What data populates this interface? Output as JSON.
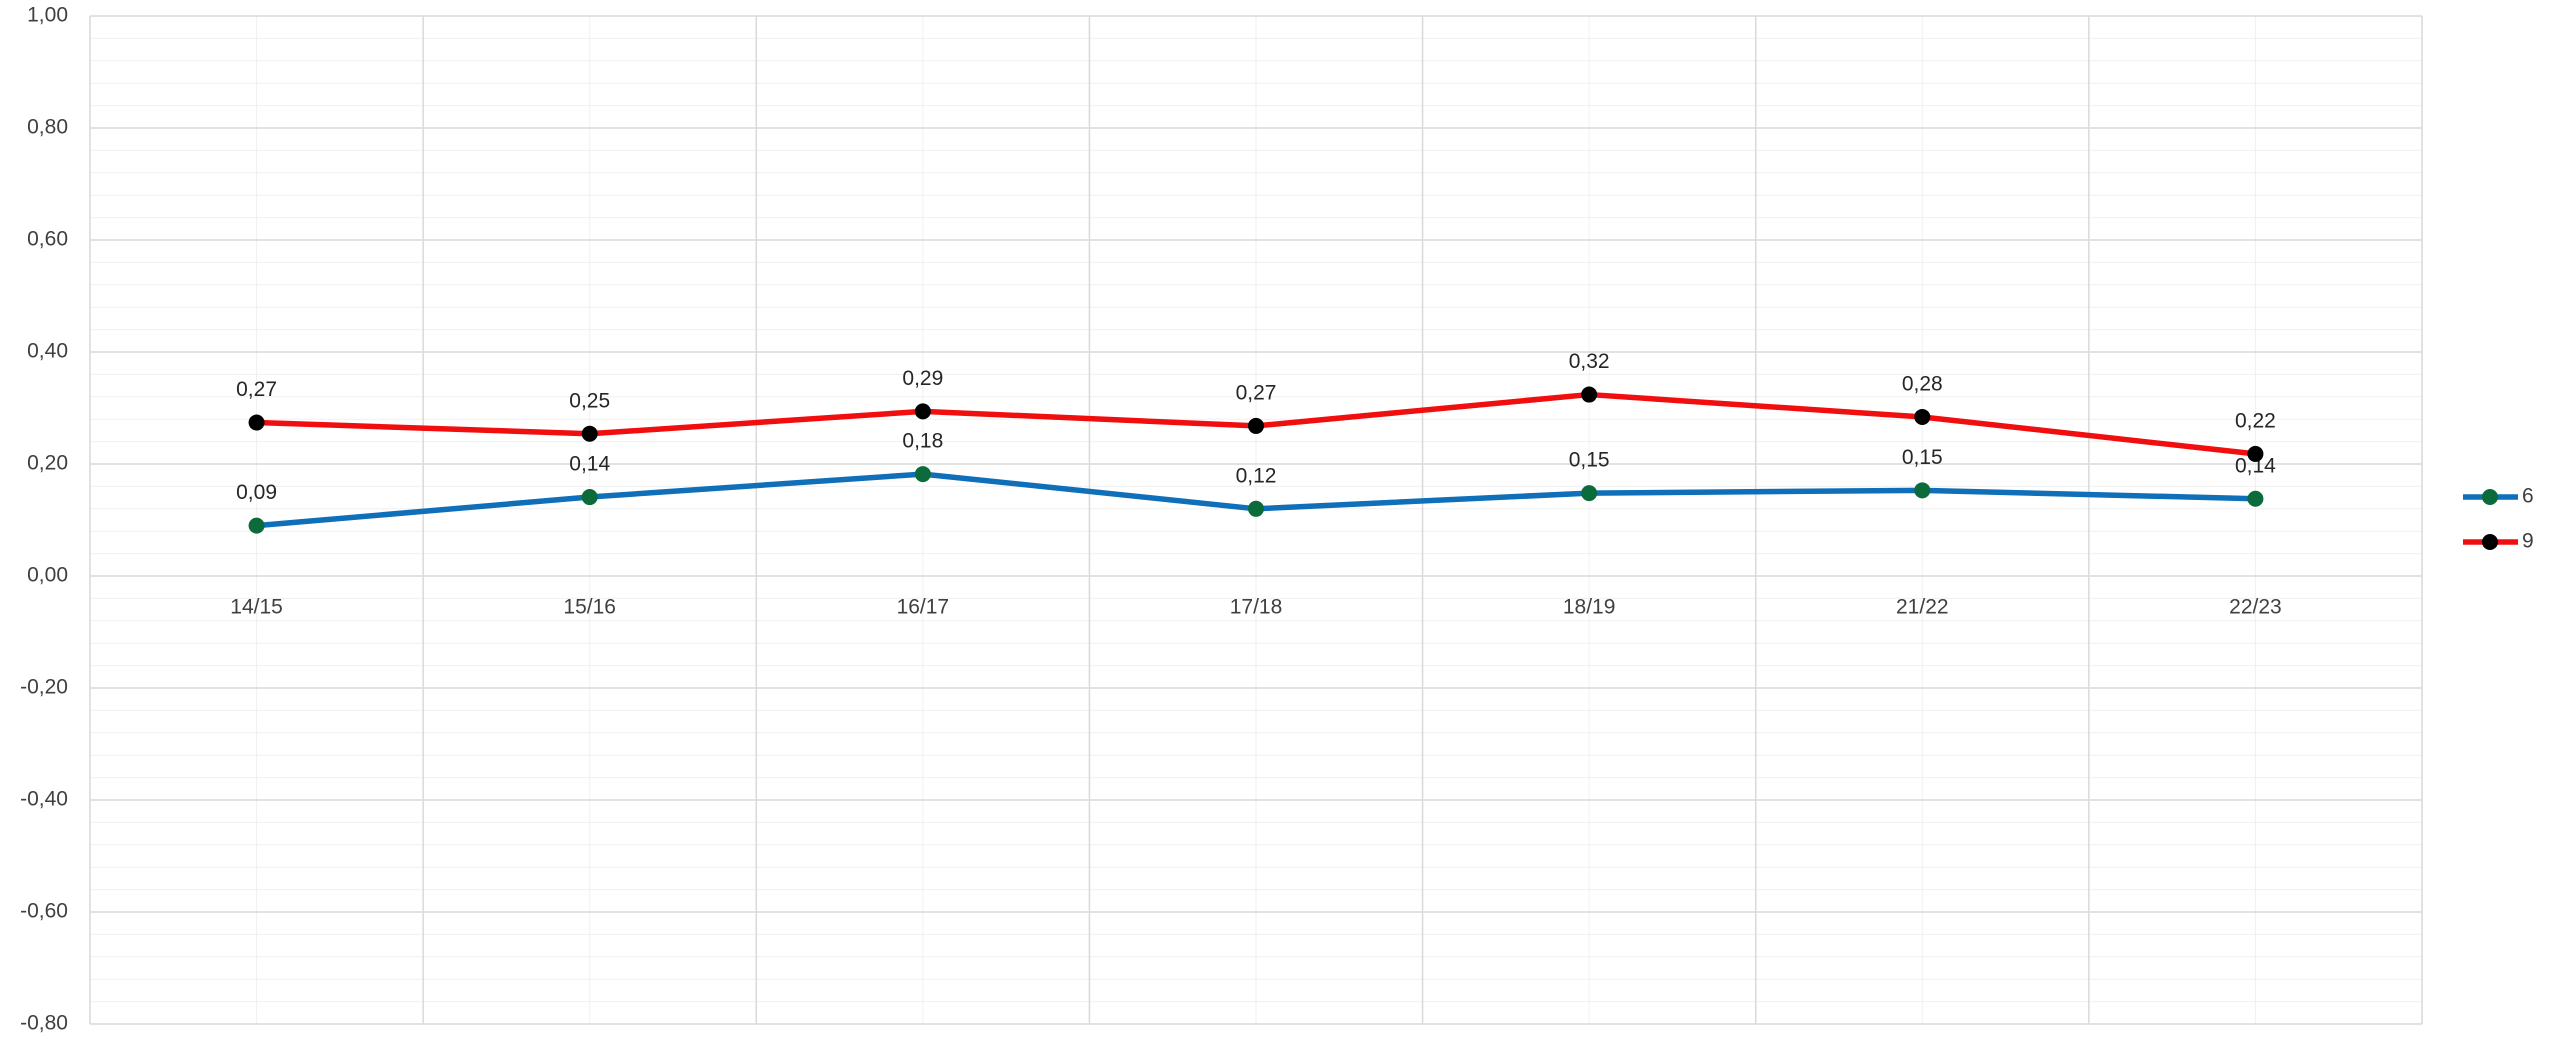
{
  "chart_data": {
    "type": "line",
    "categories": [
      "14/15",
      "15/16",
      "16/17",
      "17/18",
      "18/19",
      "21/22",
      "22/23"
    ],
    "series": [
      {
        "name": "6",
        "color": "#0f6fb8",
        "marker_color": "#0b6b3a",
        "values": [
          0.09,
          0.141,
          0.182,
          0.12,
          0.148,
          0.153,
          0.138
        ],
        "value_labels": [
          "0,09",
          "0,14",
          "0,18",
          "0,12",
          "0,15",
          "0,15",
          "0,14"
        ]
      },
      {
        "name": "9",
        "color": "#f00e0e",
        "marker_color": "#000000",
        "values": [
          0.274,
          0.254,
          0.294,
          0.268,
          0.324,
          0.284,
          0.218
        ],
        "value_labels": [
          "0,27",
          "0,25",
          "0,29",
          "0,27",
          "0,32",
          "0,28",
          "0,22"
        ]
      }
    ],
    "ylim": [
      -0.8,
      1.0
    ],
    "yticks": [
      {
        "value": -0.8,
        "label": "-0,80"
      },
      {
        "value": -0.6,
        "label": "-0,60"
      },
      {
        "value": -0.4,
        "label": "-0,40"
      },
      {
        "value": -0.2,
        "label": "-0,20"
      },
      {
        "value": 0,
        "label": "0,00"
      },
      {
        "value": 0.2,
        "label": "0,20"
      },
      {
        "value": 0.4,
        "label": "0,40"
      },
      {
        "value": 0.6,
        "label": "0,60"
      },
      {
        "value": 0.8,
        "label": "0,80"
      },
      {
        "value": 1.0,
        "label": "1,00"
      }
    ],
    "grid": true,
    "legend": "right"
  }
}
